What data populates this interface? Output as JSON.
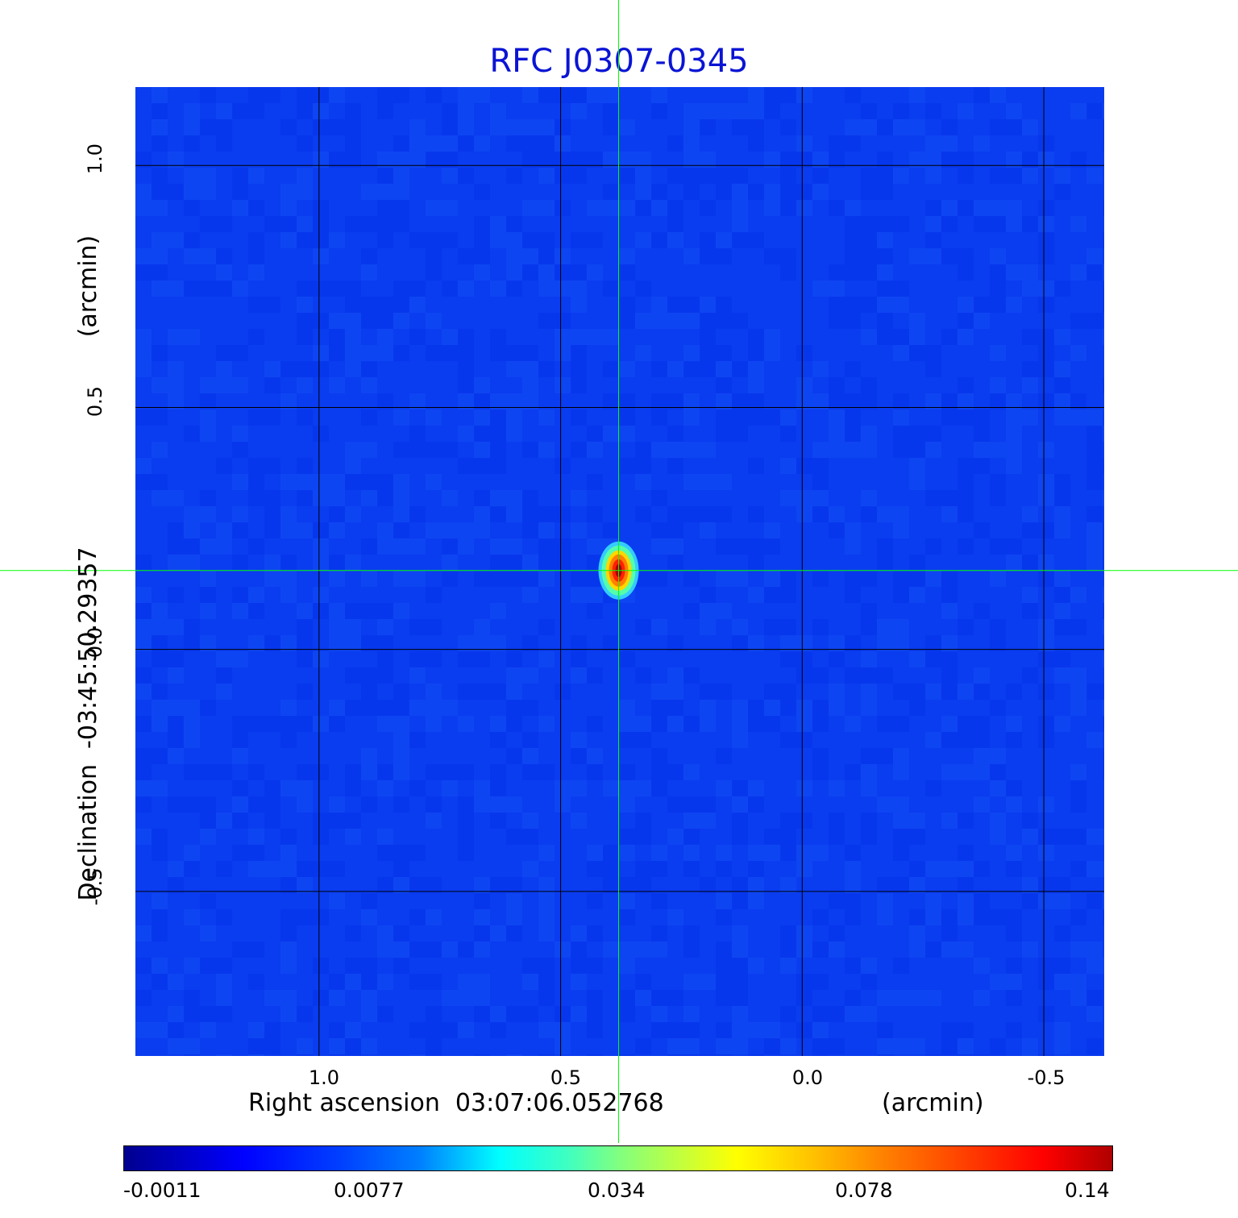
{
  "title": "RFC J0307-0345",
  "x_axis": {
    "label": "Right ascension  03:07:06.052768",
    "unit": "(arcmin)",
    "ticks": [
      "1.0",
      "0.5",
      "0.0",
      "-0.5"
    ],
    "tick_values": [
      1.0,
      0.5,
      0.0,
      -0.5
    ],
    "range": [
      1.38,
      -0.625
    ]
  },
  "y_axis": {
    "label": "Declination  -03:45:50.29357",
    "unit": "(arcmin)",
    "ticks": [
      "1.0",
      "0.5",
      "0.0",
      "-0.5"
    ],
    "tick_values": [
      1.0,
      0.5,
      0.0,
      -0.5
    ],
    "range": [
      -0.84,
      1.162
    ]
  },
  "source": {
    "ra_offset_arcmin": 0.38,
    "dec_offset_arcmin": 0.163,
    "peak": 0.14
  },
  "colorbar": {
    "ticks": [
      "-0.0011",
      "0.0077",
      "0.034",
      "0.078",
      "0.14"
    ],
    "colormap": "jet"
  },
  "colors": {
    "title": "#0a14d4",
    "background_map": "#0a3cf0",
    "grid": "#000000",
    "crosshair": "#00ff00"
  },
  "grid": true
}
